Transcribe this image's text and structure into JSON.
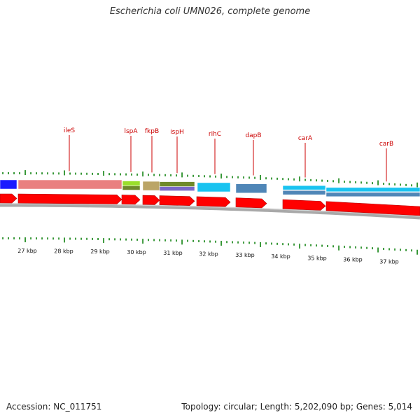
{
  "header": {
    "title": "Escherichia coli UMN026, complete genome"
  },
  "footer": {
    "accession": "Accession: NC_011751",
    "summary": "Topology: circular; Length: 5,202,090 bp; Genes: 5,014"
  },
  "colors": {
    "gene_label": "#cc0000",
    "tick": "#1f8a1f",
    "arrow": "#ff0000",
    "backbone": "#8a8a8a"
  },
  "gene_labels": [
    "ileS",
    "lspA",
    "fkpB",
    "ispH",
    "rihC",
    "dapB",
    "carA",
    "carB"
  ],
  "kbp_labels": [
    "27 kbp",
    "28 kbp",
    "29 kbp",
    "30 kbp",
    "31 kbp",
    "32 kbp",
    "33 kbp",
    "34 kbp",
    "35 kbp",
    "36 kbp",
    "37 kbp"
  ],
  "feature_colors": {
    "blue": "#1a1aff",
    "pink": "#e98080",
    "lime": "#9adf2a",
    "tan": "#bba567",
    "olive": "#6f8a2a",
    "purple": "#7a69c9",
    "cyan": "#19c3f0",
    "steelblue": "#4f86b7"
  }
}
